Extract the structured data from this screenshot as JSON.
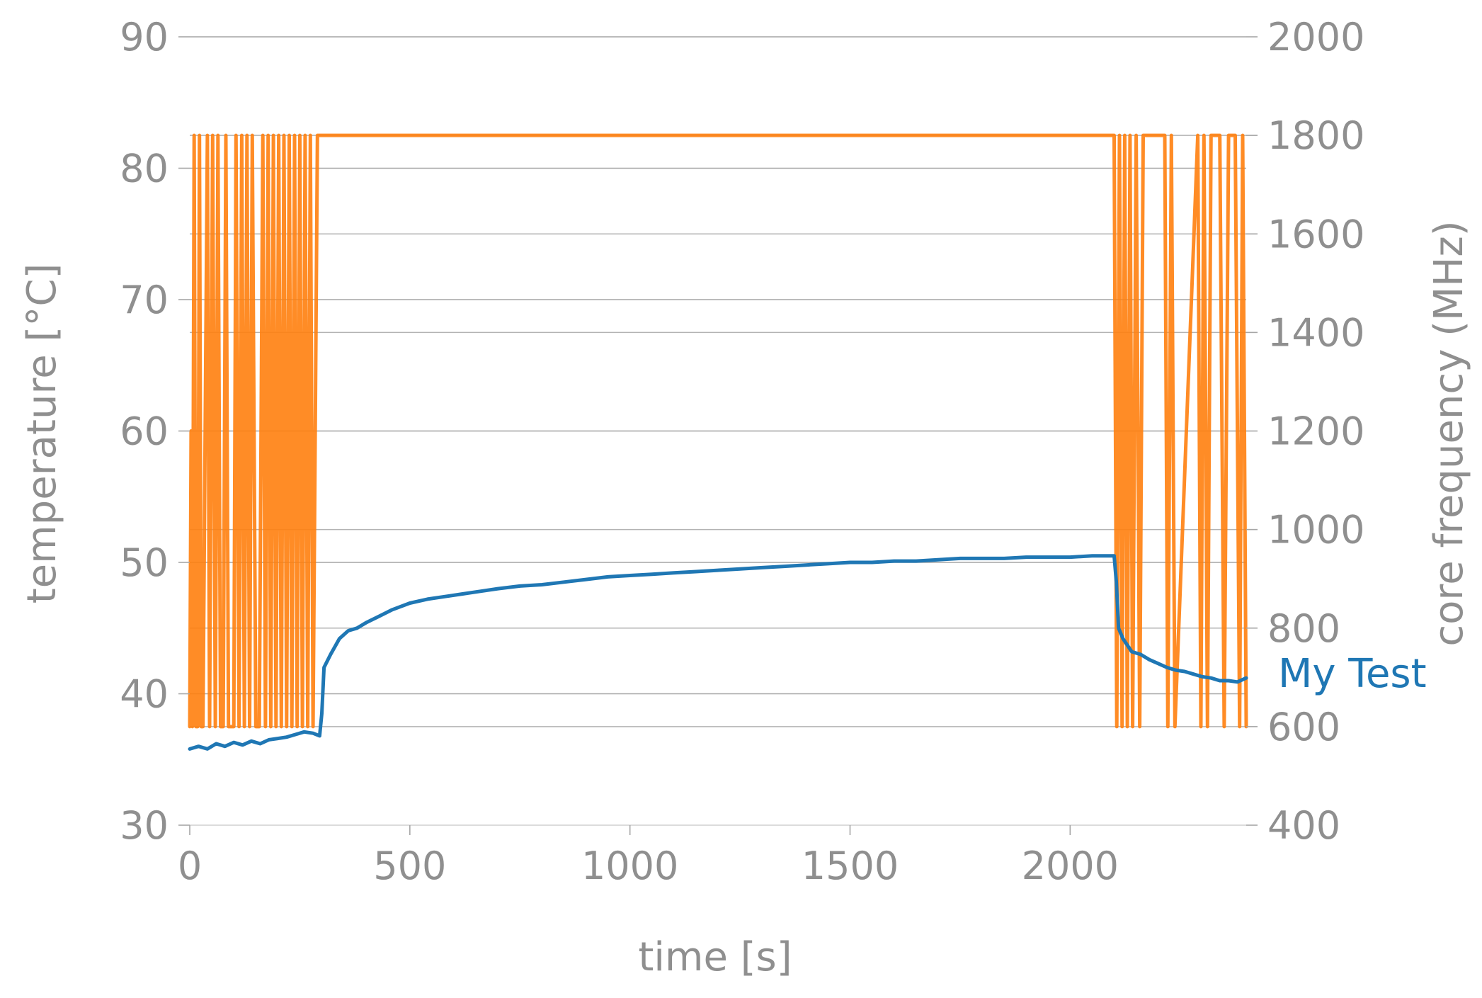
{
  "chart_data": {
    "type": "line",
    "xlabel": "time [s]",
    "ylabel_left": "temperature [°C]",
    "ylabel_right": "core frequency (MHz)",
    "xlim": [
      0,
      2400
    ],
    "ylim_left": [
      30,
      90
    ],
    "ylim_right": [
      400,
      2000
    ],
    "x_ticks": [
      "0",
      "500",
      "1000",
      "1500",
      "2000"
    ],
    "y_left_ticks": [
      "30",
      "40",
      "50",
      "60",
      "70",
      "80",
      "90"
    ],
    "y_right_ticks": [
      "400",
      "600",
      "800",
      "1000",
      "1200",
      "1400",
      "1600",
      "1800",
      "2000"
    ],
    "grid": true,
    "series": [
      {
        "name": "My Test",
        "axis": "left",
        "color": "#1f77b4",
        "x": [
          0,
          20,
          40,
          60,
          80,
          100,
          120,
          140,
          160,
          180,
          200,
          220,
          240,
          260,
          280,
          295,
          300,
          305,
          320,
          340,
          360,
          380,
          400,
          430,
          460,
          500,
          540,
          580,
          620,
          660,
          700,
          750,
          800,
          850,
          900,
          950,
          1000,
          1050,
          1100,
          1150,
          1200,
          1250,
          1300,
          1350,
          1400,
          1450,
          1500,
          1550,
          1600,
          1650,
          1700,
          1750,
          1800,
          1850,
          1900,
          1950,
          2000,
          2050,
          2100,
          2105,
          2110,
          2120,
          2140,
          2160,
          2180,
          2200,
          2220,
          2240,
          2260,
          2280,
          2300,
          2320,
          2340,
          2360,
          2380,
          2400
        ],
        "y": [
          35.8,
          36.0,
          35.8,
          36.2,
          36.0,
          36.3,
          36.1,
          36.4,
          36.2,
          36.5,
          36.6,
          36.7,
          36.9,
          37.1,
          37.0,
          36.8,
          38.5,
          42.0,
          43.0,
          44.2,
          44.8,
          45.0,
          45.4,
          45.9,
          46.4,
          46.9,
          47.2,
          47.4,
          47.6,
          47.8,
          48.0,
          48.2,
          48.3,
          48.5,
          48.7,
          48.9,
          49.0,
          49.1,
          49.2,
          49.3,
          49.4,
          49.5,
          49.6,
          49.7,
          49.8,
          49.9,
          50.0,
          50.0,
          50.1,
          50.1,
          50.2,
          50.3,
          50.3,
          50.3,
          50.4,
          50.4,
          50.4,
          50.5,
          50.5,
          48.5,
          45.0,
          44.2,
          43.2,
          43.0,
          42.6,
          42.3,
          42.0,
          41.8,
          41.7,
          41.5,
          41.3,
          41.2,
          41.0,
          41.0,
          40.9,
          41.2
        ]
      },
      {
        "name": "",
        "axis": "right",
        "color": "#ff7f0e",
        "x": [
          0,
          3,
          6,
          10,
          14,
          18,
          22,
          26,
          30,
          40,
          45,
          52,
          58,
          64,
          70,
          76,
          82,
          88,
          100,
          105,
          112,
          118,
          124,
          130,
          136,
          142,
          150,
          158,
          166,
          172,
          178,
          184,
          190,
          196,
          202,
          208,
          214,
          220,
          226,
          232,
          238,
          244,
          250,
          256,
          262,
          268,
          274,
          280,
          290,
          2100,
          2106,
          2112,
          2118,
          2124,
          2130,
          2136,
          2142,
          2150,
          2158,
          2166,
          2175,
          2215,
          2222,
          2230,
          2238,
          2290,
          2297,
          2304,
          2312,
          2320,
          2340,
          2350,
          2360,
          2375,
          2385,
          2392,
          2400
        ],
        "y": [
          600,
          1200,
          600,
          1800,
          600,
          600,
          1800,
          600,
          600,
          1800,
          600,
          1800,
          600,
          1800,
          600,
          600,
          1800,
          600,
          600,
          1800,
          600,
          1800,
          600,
          1800,
          600,
          1800,
          600,
          600,
          1800,
          600,
          1800,
          600,
          1800,
          600,
          1800,
          600,
          1800,
          600,
          1800,
          600,
          1800,
          600,
          1800,
          600,
          1800,
          600,
          1800,
          600,
          1800,
          1800,
          600,
          1800,
          600,
          1800,
          600,
          1800,
          600,
          1800,
          600,
          1800,
          1800,
          1800,
          600,
          1800,
          600,
          1800,
          600,
          1800,
          600,
          1800,
          1800,
          600,
          1800,
          1800,
          600,
          1800,
          600
        ]
      }
    ]
  }
}
